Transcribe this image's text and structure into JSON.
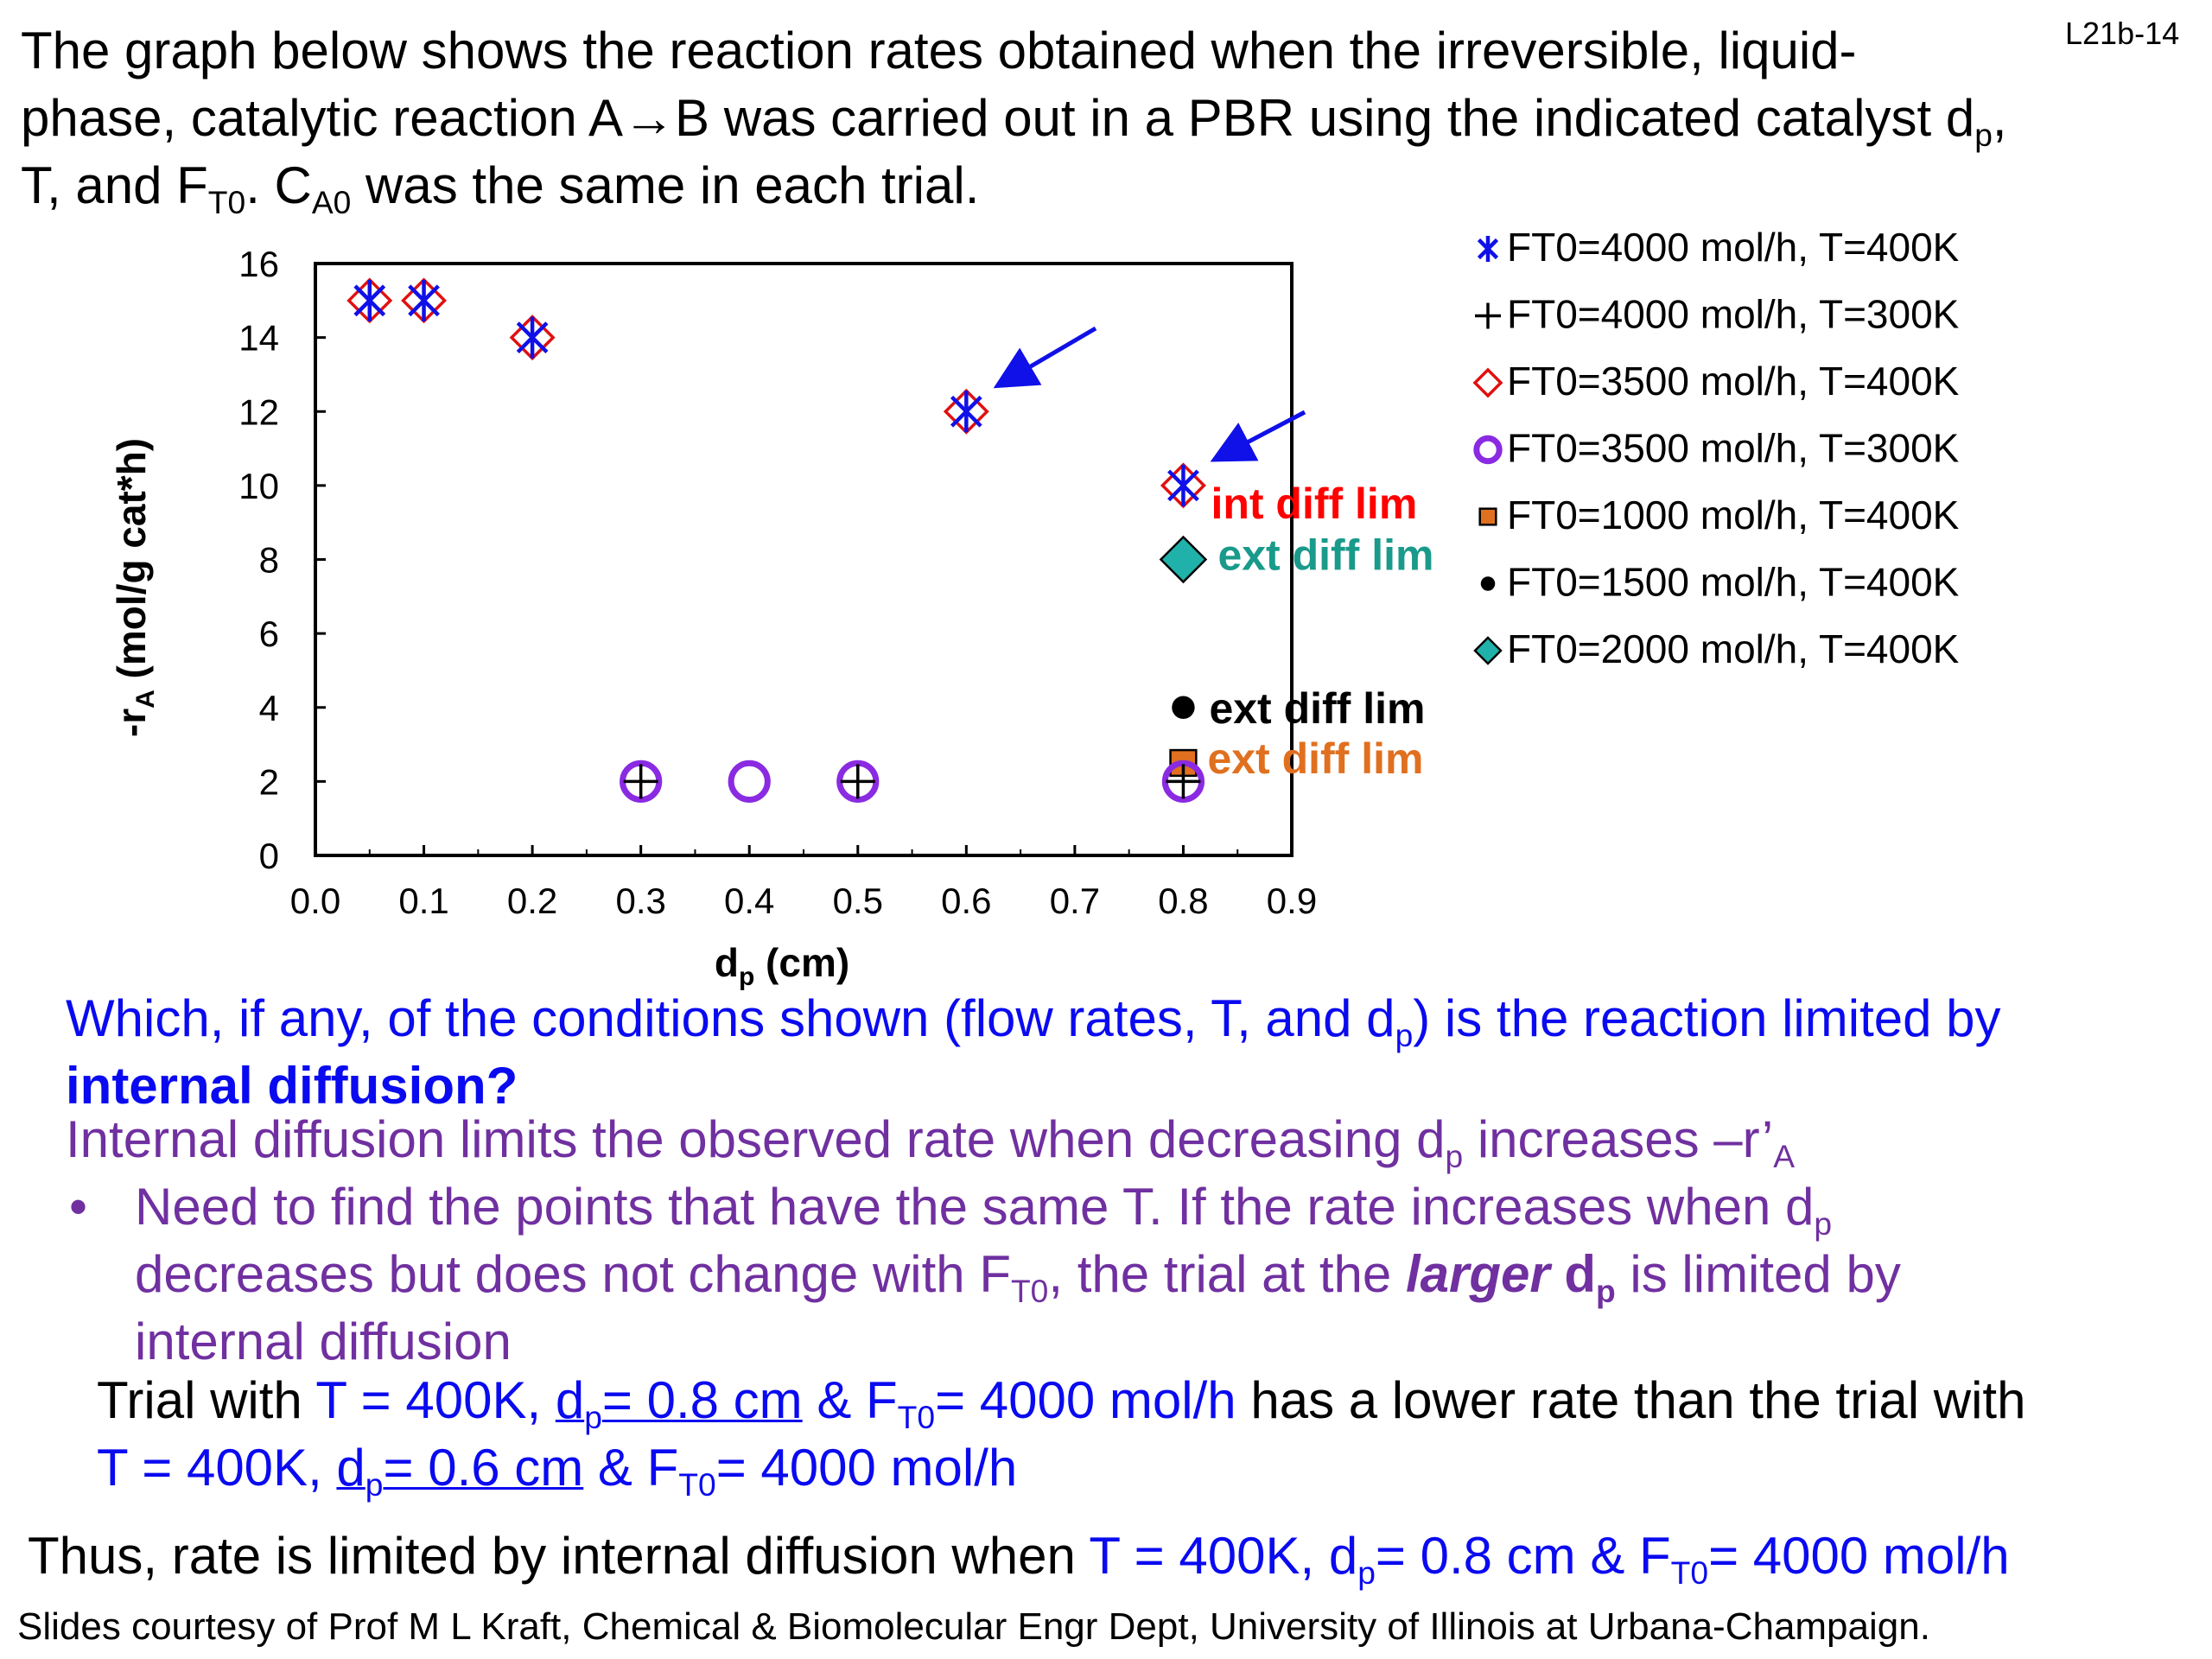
{
  "slide_id": "L21b-14",
  "intro": {
    "l1": "The graph below shows the reaction rates obtained when the irreversible, liquid-",
    "l2a": "phase, catalytic reaction A→B was carried out in a PBR using the indicated catalyst d",
    "l2sub": "p",
    "l2b": ",",
    "l3a": "T, and F",
    "l3sub1": "T0",
    "l3b": ". C",
    "l3sub2": "A0",
    "l3c": " was the same in each trial."
  },
  "chart_data": {
    "type": "scatter",
    "xlabel": "d",
    "xlabel_sub": "p",
    "xlabel_rest": " (cm)",
    "ylabel": "-r",
    "ylabel_sub": "A",
    "ylabel_rest": " (mol/g cat*h)",
    "xlim": [
      0,
      0.9
    ],
    "ylim": [
      0,
      16
    ],
    "xticks": [
      "0.0",
      "0.1",
      "0.2",
      "0.3",
      "0.4",
      "0.5",
      "0.6",
      "0.7",
      "0.8",
      "0.9"
    ],
    "yticks": [
      "0",
      "2",
      "4",
      "6",
      "8",
      "10",
      "12",
      "14",
      "16"
    ],
    "grid": false,
    "legend_position": "right",
    "series": [
      {
        "name": "FT0=4000 mol/h, T=400K",
        "marker": "asterisk",
        "color": "#1010e8",
        "points": [
          [
            0.05,
            15
          ],
          [
            0.1,
            15
          ],
          [
            0.2,
            14
          ],
          [
            0.6,
            12
          ],
          [
            0.8,
            10
          ]
        ]
      },
      {
        "name": "FT0=4000 mol/h, T=300K",
        "marker": "plus",
        "color": "#000000",
        "points": [
          [
            0.3,
            2
          ],
          [
            0.5,
            2
          ],
          [
            0.8,
            2
          ]
        ]
      },
      {
        "name": "FT0=3500 mol/h, T=400K",
        "marker": "diamond-open",
        "color": "#e01010",
        "points": [
          [
            0.05,
            15
          ],
          [
            0.1,
            15
          ],
          [
            0.2,
            14
          ],
          [
            0.6,
            12
          ],
          [
            0.8,
            10
          ]
        ]
      },
      {
        "name": "FT0=3500 mol/h, T=300K",
        "marker": "circle-open",
        "color": "#8a2be2",
        "points": [
          [
            0.3,
            2
          ],
          [
            0.4,
            2
          ],
          [
            0.5,
            2
          ],
          [
            0.8,
            2
          ]
        ]
      },
      {
        "name": "FT0=1000 mol/h, T=400K",
        "marker": "square",
        "color": "#e07020",
        "points": [
          [
            0.8,
            2.5
          ]
        ]
      },
      {
        "name": "FT0=1500 mol/h, T=400K",
        "marker": "dot",
        "color": "#000000",
        "points": [
          [
            0.8,
            4
          ]
        ]
      },
      {
        "name": "FT0=2000 mol/h, T=400K",
        "marker": "diamond-fill",
        "color": "#20b2aa",
        "points": [
          [
            0.8,
            8
          ]
        ]
      }
    ],
    "annotations": [
      {
        "text": "int diff lim",
        "x": 0.8,
        "y": 10,
        "color": "#ff0000"
      },
      {
        "text": "ext diff lim",
        "x": 0.8,
        "y": 8,
        "color": "#1a9a8a"
      },
      {
        "text": "ext diff lim",
        "x": 0.8,
        "y": 4,
        "color": "#000000"
      },
      {
        "text": "ext diff lim",
        "x": 0.8,
        "y": 2.5,
        "color": "#e07020"
      }
    ],
    "arrows": [
      {
        "to_x": 0.6,
        "to_y": 12,
        "color": "#1010e8"
      },
      {
        "to_x": 0.8,
        "to_y": 10,
        "color": "#1010e8"
      }
    ]
  },
  "question": {
    "l1a": "Which, if any, of the conditions shown (flow rates, T, and d",
    "l1sub": "p",
    "l1b": ") is the reaction limited by",
    "l2": "internal diffusion?"
  },
  "answer": {
    "l1a": "Internal diffusion limits the observed rate when decreasing d",
    "l1sub": "p",
    "l1b": " increases –r’",
    "l1sub2": "A",
    "bullet": "•",
    "b1a": "Need to find the points that have the same T. If the rate increases when d",
    "b1sub": "p",
    "b2a": "decreases but does not change with F",
    "b2sub": "T0",
    "b2b": ", the trial at the ",
    "b2c": "larger",
    "b2d": " d",
    "b2sub2": "p",
    "b2e": " is limited by",
    "b3": "internal diffusion"
  },
  "trial": {
    "a": "Trial with ",
    "b": "T = 400K, ",
    "c": "d",
    "csub": "p",
    "cd": "= 0.8 cm",
    "e": " & F",
    "esub": "T0",
    "f": "= 4000 mol/h",
    "g": " has a lower rate than the trial with",
    "h": "T = 400K, ",
    "i": "d",
    "isub": "p",
    "j": "= 0.6 cm",
    "k": " & F",
    "ksub": "T0",
    "l": "= 4000 mol/h"
  },
  "conclusion": {
    "a": "Thus, rate is limited by internal diffusion when ",
    "b": "T = 400K, d",
    "bsub": "p",
    "c": "= 0.8 cm & F",
    "csub": "T0",
    "d": "= 4000 mol/h"
  },
  "footer": "Slides courtesy of Prof M L Kraft, Chemical & Biomolecular Engr Dept, University of Illinois at Urbana-Champaign."
}
